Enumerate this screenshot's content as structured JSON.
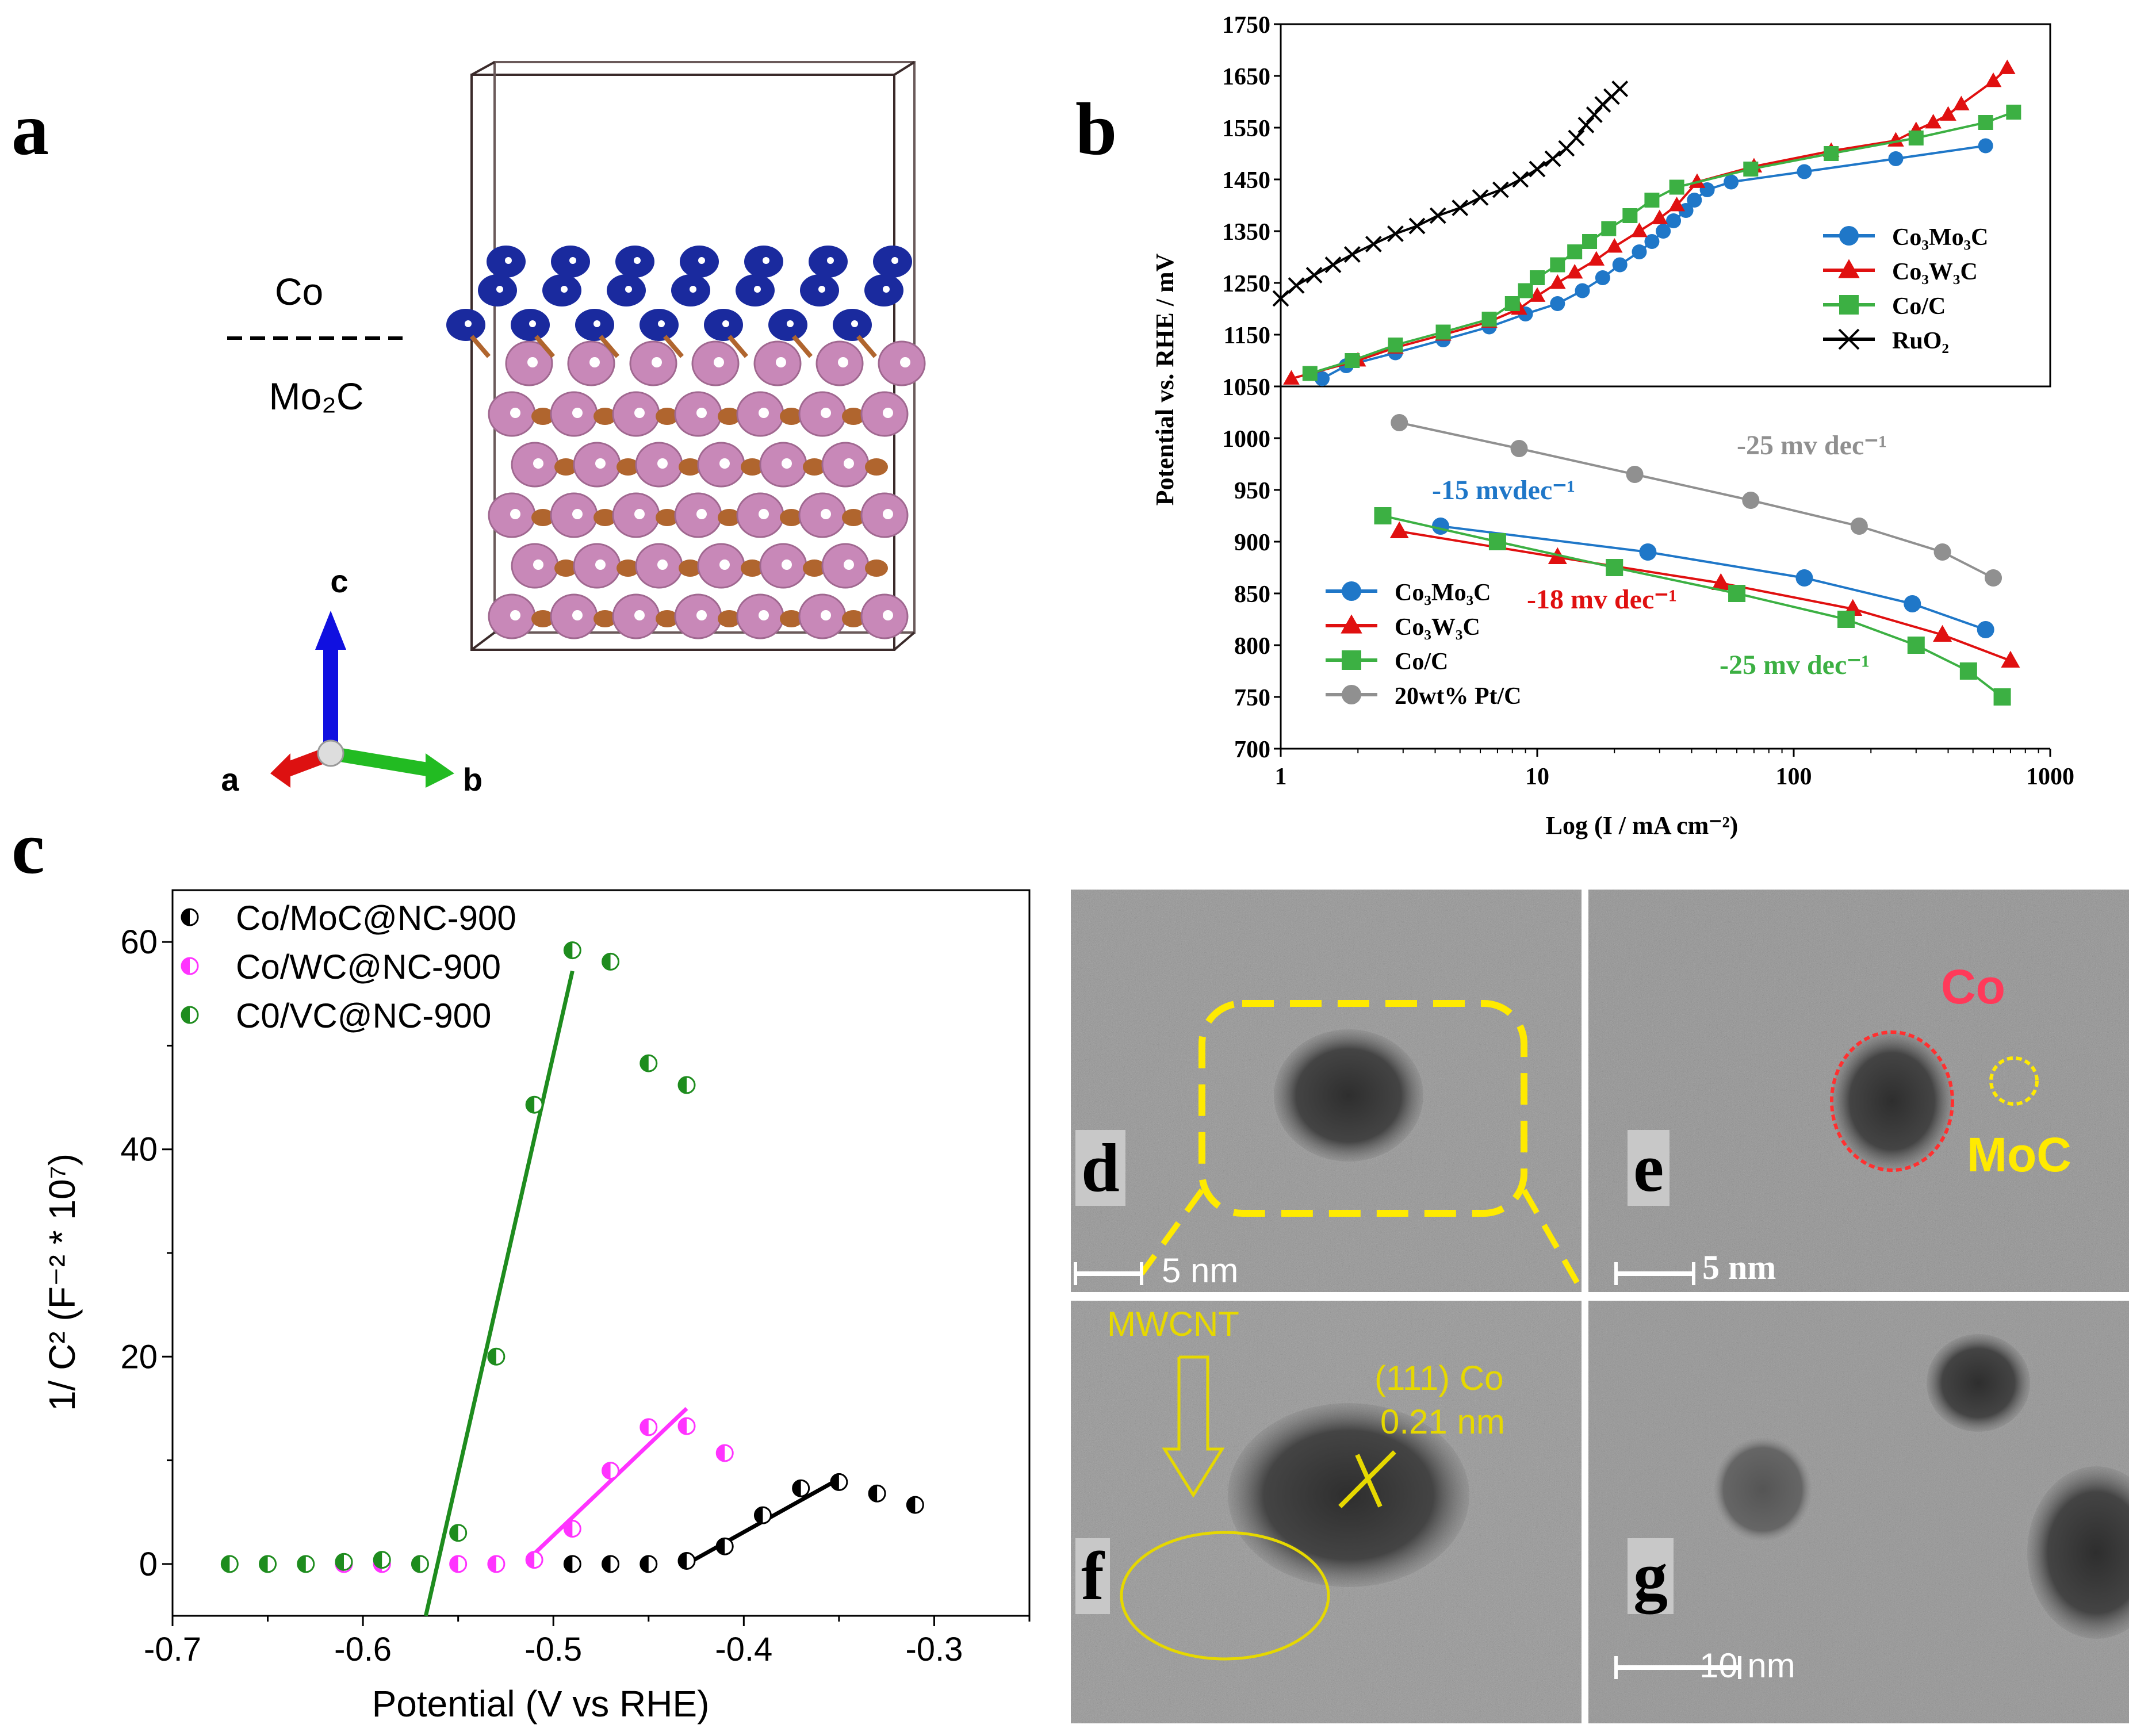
{
  "panels": {
    "a": {
      "letter": "a",
      "label_top": "Co",
      "label_bottom": "Mo₂C",
      "axis_c": "c",
      "axis_a": "a",
      "axis_b": "b"
    },
    "b": {
      "letter": "b"
    },
    "c": {
      "letter": "c"
    },
    "d": {
      "letter": "d",
      "scale": "5 nm"
    },
    "e": {
      "letter": "e",
      "scale": "5 nm",
      "label_co": "Co",
      "label_moc": "MoC"
    },
    "f": {
      "letter": "f",
      "label_mwcnt": "MWCNT",
      "label_plane": "(111) Co",
      "label_spacing": "0.21 nm"
    },
    "g": {
      "letter": "g",
      "scale": "10 nm"
    }
  },
  "colors": {
    "co_atom": "#1a2a9e",
    "mo_atom": "#c888b8",
    "c_atom": "#b0652e",
    "green": "#1e8c1e",
    "magenta": "#ff33ff",
    "black": "#000000",
    "blue": "#1f77c8",
    "red": "#e01010",
    "lgreen": "#3cb043",
    "grey": "#909090",
    "yellow": "#ffea00"
  },
  "chart_data": [
    {
      "panel": "b-top",
      "type": "line",
      "ylabel": "Potential vs. RHE / mV",
      "xlabel": "Log (I / mA cm⁻²)",
      "xscale": "log",
      "xlim": [
        1,
        1000
      ],
      "ylim": [
        1050,
        1750
      ],
      "yticks": [
        "1050",
        "1150",
        "1250",
        "1350",
        "1450",
        "1550",
        "1650",
        "1750"
      ],
      "xticks": [
        "1",
        "10",
        "100",
        "1000"
      ],
      "legend": "right",
      "series": [
        {
          "name": "Co₃Mo₃C",
          "color": "#1f77c8",
          "marker": "circle",
          "x": [
            1.45,
            1.8,
            2.8,
            4.3,
            6.5,
            9,
            12,
            15,
            18,
            21,
            25,
            28,
            31,
            34,
            38,
            41,
            46,
            57,
            110,
            250,
            560
          ],
          "y": [
            1065,
            1090,
            1115,
            1140,
            1165,
            1190,
            1210,
            1235,
            1260,
            1285,
            1310,
            1330,
            1350,
            1370,
            1390,
            1410,
            1430,
            1445,
            1465,
            1490,
            1515
          ]
        },
        {
          "name": "Co₃W₃C",
          "color": "#e01010",
          "marker": "triangle",
          "x": [
            1.1,
            2,
            2.8,
            4.3,
            6.5,
            8.5,
            10,
            12,
            14,
            17,
            20,
            25,
            30,
            35,
            42,
            70,
            140,
            250,
            300,
            350,
            400,
            450,
            600,
            680
          ],
          "y": [
            1065,
            1100,
            1125,
            1150,
            1175,
            1200,
            1225,
            1250,
            1270,
            1295,
            1320,
            1350,
            1375,
            1400,
            1445,
            1475,
            1505,
            1525,
            1545,
            1560,
            1575,
            1595,
            1640,
            1665
          ]
        },
        {
          "name": "Co/C",
          "color": "#3cb043",
          "marker": "square",
          "x": [
            1.3,
            1.9,
            2.8,
            4.3,
            6.5,
            8,
            9,
            10,
            12,
            14,
            16,
            19,
            23,
            28,
            35,
            68,
            140,
            300,
            560,
            720
          ],
          "y": [
            1075,
            1100,
            1130,
            1155,
            1180,
            1210,
            1235,
            1260,
            1285,
            1310,
            1330,
            1355,
            1380,
            1410,
            1435,
            1470,
            1500,
            1530,
            1560,
            1580
          ]
        },
        {
          "name": "RuO₂",
          "color": "#000000",
          "marker": "x",
          "x": [
            1,
            1.15,
            1.35,
            1.6,
            1.9,
            2.3,
            2.8,
            3.4,
            4.1,
            5,
            6,
            7.2,
            8.6,
            10,
            11.5,
            13,
            14.2,
            15.5,
            16.7,
            18,
            19.5,
            21
          ],
          "y": [
            1220,
            1245,
            1265,
            1285,
            1305,
            1325,
            1345,
            1360,
            1380,
            1395,
            1415,
            1430,
            1450,
            1470,
            1490,
            1510,
            1530,
            1555,
            1575,
            1595,
            1610,
            1625
          ]
        }
      ]
    },
    {
      "panel": "b-bottom",
      "type": "line",
      "ylabel": "",
      "xscale": "log",
      "xlim": [
        1,
        1000
      ],
      "ylim": [
        700,
        1050
      ],
      "yticks": [
        "700",
        "750",
        "800",
        "850",
        "900",
        "950",
        "1000"
      ],
      "legend": "bottom-left",
      "annotations": [
        "-25 mv dec⁻¹",
        "-15 mvdec⁻¹",
        "-18 mv dec⁻¹",
        "-25 mv dec⁻¹"
      ],
      "series": [
        {
          "name": "Co₃Mo₃C",
          "color": "#1f77c8",
          "marker": "circle",
          "x": [
            4.2,
            27,
            110,
            290,
            560
          ],
          "y": [
            915,
            890,
            865,
            840,
            815
          ]
        },
        {
          "name": "Co₃W₃C",
          "color": "#e01010",
          "marker": "triangle",
          "x": [
            2.9,
            12,
            52,
            170,
            380,
            700
          ],
          "y": [
            910,
            885,
            860,
            835,
            810,
            785
          ]
        },
        {
          "name": "Co/C",
          "color": "#3cb043",
          "marker": "square",
          "x": [
            2.5,
            7,
            20,
            60,
            160,
            300,
            480,
            650
          ],
          "y": [
            925,
            900,
            875,
            850,
            825,
            800,
            775,
            750
          ]
        },
        {
          "name": "20wt% Pt/C",
          "color": "#909090",
          "marker": "circle",
          "x": [
            2.9,
            8.5,
            24,
            68,
            180,
            380,
            600
          ],
          "y": [
            1015,
            990,
            965,
            940,
            915,
            890,
            865
          ]
        }
      ]
    },
    {
      "panel": "c",
      "type": "scatter",
      "xlabel": "Potential (V vs RHE)",
      "ylabel": "1/ C² (F⁻² * 10⁷)",
      "xlim": [
        -0.7,
        -0.25
      ],
      "ylim": [
        -5,
        65
      ],
      "xticks": [
        "-0.7",
        "-0.6",
        "-0.5",
        "-0.4",
        "-0.3"
      ],
      "yticks": [
        "0",
        "20",
        "40",
        "60"
      ],
      "legend": "top-left",
      "series": [
        {
          "name": "Co/MoC@NC-900",
          "color": "#000000",
          "x": [
            -0.49,
            -0.47,
            -0.45,
            -0.43,
            -0.41,
            -0.39,
            -0.37,
            -0.35,
            -0.33,
            -0.31
          ],
          "y": [
            0,
            0,
            0,
            0.3,
            1.7,
            4.7,
            7.3,
            7.9,
            6.8,
            5.7
          ],
          "fit": [
            [
              -0.43,
              0
            ],
            [
              -0.35,
              8.2
            ]
          ]
        },
        {
          "name": "Co/WC@NC-900",
          "color": "#ff33ff",
          "x": [
            -0.61,
            -0.59,
            -0.57,
            -0.55,
            -0.53,
            -0.51,
            -0.49,
            -0.47,
            -0.45,
            -0.43,
            -0.41
          ],
          "y": [
            0,
            0,
            0,
            0,
            0,
            0.4,
            3.4,
            9,
            13.2,
            13.3,
            10.7
          ],
          "fit": [
            [
              -0.51,
              1
            ],
            [
              -0.43,
              15
            ]
          ]
        },
        {
          "name": "C0/VC@NC-900",
          "color": "#1e8c1e",
          "x": [
            -0.67,
            -0.65,
            -0.63,
            -0.61,
            -0.59,
            -0.57,
            -0.55,
            -0.53,
            -0.51,
            -0.49,
            -0.47,
            -0.45,
            -0.43
          ],
          "y": [
            0,
            0,
            0,
            0.2,
            0.4,
            0,
            3,
            20,
            44.3,
            59.2,
            58.1,
            48.3,
            46.2
          ],
          "fit": [
            [
              -0.567,
              -5
            ],
            [
              -0.49,
              57.2
            ]
          ]
        }
      ]
    }
  ]
}
